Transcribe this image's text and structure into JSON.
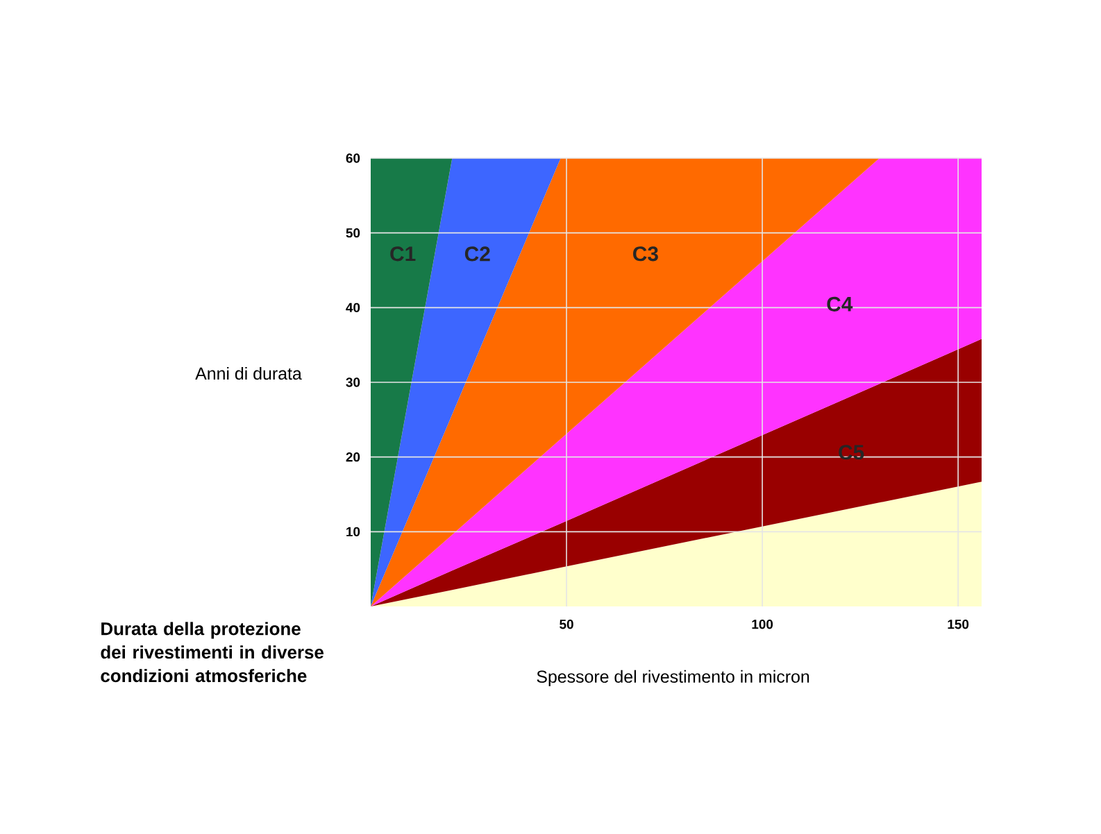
{
  "chart_data": {
    "type": "area",
    "stacked": true,
    "xlabel": "Spessore del rivestimento in micron",
    "ylabel": "Anni di durata",
    "annotations": [
      "Durata della protezione dei rivestimenti in diverse condizioni atmosferiche"
    ],
    "xlim": [
      0,
      156
    ],
    "ylim": [
      0,
      60
    ],
    "xticks": [
      50,
      100,
      150
    ],
    "yticks": [
      10,
      20,
      30,
      40,
      50,
      60
    ],
    "grid": true,
    "x": [
      0,
      20.8,
      48.5,
      129.9,
      156
    ],
    "series": [
      {
        "color": "#ffffcc",
        "values": [
          0,
          2.2,
          5.2,
          13.9,
          16.7
        ]
      },
      {
        "name": "C5",
        "color": "#990000",
        "values": [
          0,
          2.6,
          5.9,
          15.9,
          19.1
        ]
      },
      {
        "name": "C4",
        "color": "#ff33ff",
        "values": [
          0,
          4.8,
          11.3,
          30.2,
          24.2
        ]
      },
      {
        "name": "C3",
        "color": "#ff6a00",
        "x": [
          0,
          20.8,
          48.5,
          129.9
        ],
        "values": [
          0,
          16.1,
          37.6,
          0
        ]
      },
      {
        "name": "C2",
        "color": "#3d66ff",
        "x": [
          0,
          20.8,
          48.5
        ],
        "values": [
          0,
          34.3,
          0
        ]
      },
      {
        "name": "C1",
        "color": "#177a48",
        "x": [
          0,
          20.8
        ],
        "values": [
          60,
          0
        ]
      }
    ]
  }
}
